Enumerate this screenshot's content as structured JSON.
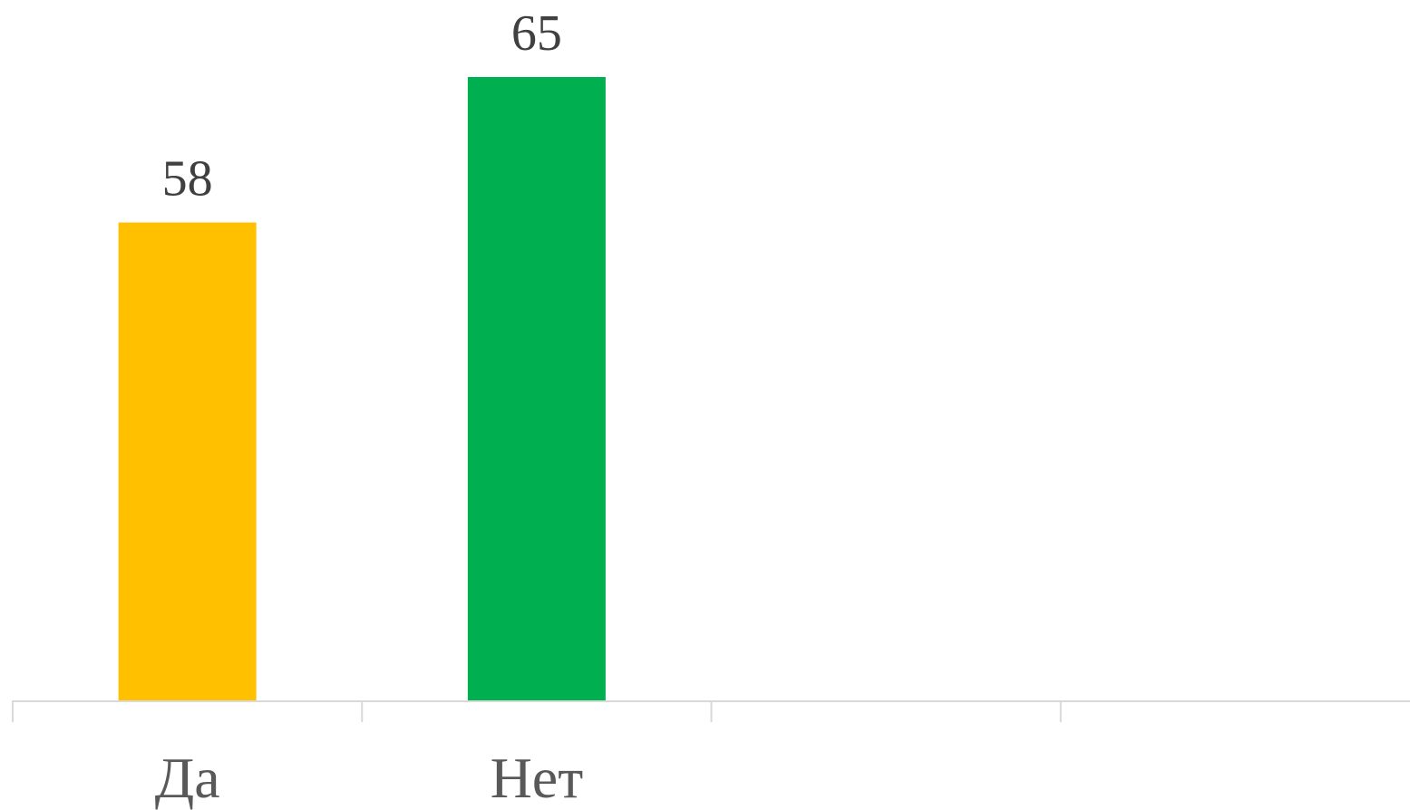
{
  "chart_data": {
    "type": "bar",
    "categories": [
      "Да",
      "Нет",
      "",
      ""
    ],
    "values": [
      58,
      65,
      null,
      null
    ],
    "colors": [
      "#FFC000",
      "#00B050"
    ],
    "title": "",
    "xlabel": "",
    "ylabel": "",
    "ylim": [
      35,
      65
    ],
    "grid": false,
    "legend": "none",
    "axis_color": "#D9D9D9"
  }
}
